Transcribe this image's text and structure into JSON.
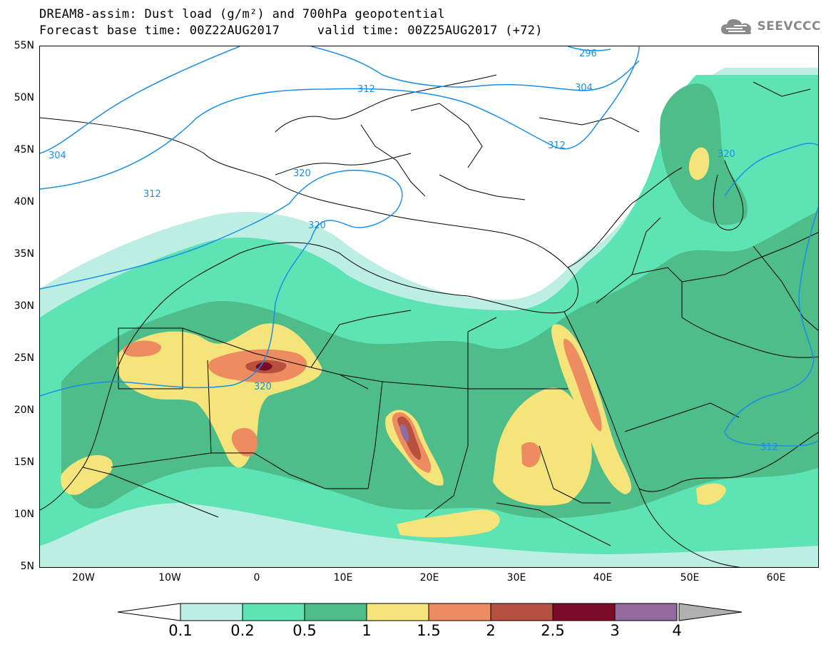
{
  "header": {
    "title_line1": "DREAM8-assim: Dust load (g/m²) and 700hPa geopotential",
    "title_line2": "Forecast base time: 00Z22AUG2017     valid time: 00Z25AUG2017 (+72)",
    "logo_text": "SEEVCCC"
  },
  "map": {
    "lat_labels": [
      "55N",
      "50N",
      "45N",
      "40N",
      "35N",
      "30N",
      "25N",
      "20N",
      "15N",
      "10N",
      "5N"
    ],
    "lon_labels": [
      "20W",
      "10W",
      "0",
      "10E",
      "20E",
      "30E",
      "40E",
      "50E",
      "60E"
    ],
    "extent": {
      "lon": [
        -25,
        65
      ],
      "lat": [
        5,
        55
      ]
    }
  },
  "isolines": {
    "labels": [
      "296",
      "304",
      "304",
      "312",
      "312",
      "312",
      "312",
      "320",
      "320",
      "320",
      "320"
    ]
  },
  "colorbar": {
    "levels": [
      "0.1",
      "0.2",
      "0.5",
      "1",
      "1.5",
      "2",
      "2.5",
      "3",
      "4"
    ],
    "colors": [
      "#bdeee4",
      "#5ee3b4",
      "#4ebd8a",
      "#f4e47a",
      "#ec8c60",
      "#b85040",
      "#7c0b28",
      "#926aa0"
    ],
    "under_color": "#ffffff",
    "over_color": "#b0b0b0"
  },
  "colors": {
    "isoline": "#1a8fe6",
    "boundary": "#000000"
  }
}
